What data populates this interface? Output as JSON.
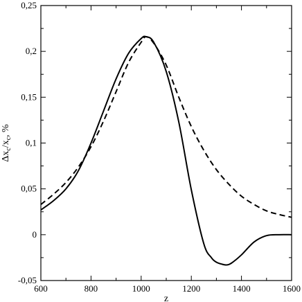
{
  "chart_data": {
    "type": "line",
    "xlabel": "z",
    "ylabel_parts": [
      "Δx",
      "c",
      "/x",
      "c",
      ", %"
    ],
    "xlim": [
      600,
      1600
    ],
    "ylim": [
      -0.05,
      0.25
    ],
    "xticks": [
      600,
      800,
      1000,
      1200,
      1400,
      1600
    ],
    "xtick_labels": [
      "600",
      "800",
      "1000",
      "1200",
      "1400",
      "1600"
    ],
    "yticks": [
      -0.05,
      0,
      0.05,
      0.1,
      0.15,
      0.2,
      0.25
    ],
    "ytick_labels": [
      "-0,05",
      "0",
      "0,05",
      "0,1",
      "0,15",
      "0,2",
      "0,25"
    ],
    "grid": false,
    "series": [
      {
        "style": "solid",
        "x": [
          600,
          650,
          700,
          750,
          800,
          850,
          900,
          950,
          1000,
          1020,
          1050,
          1100,
          1150,
          1200,
          1250,
          1280,
          1300,
          1320,
          1340,
          1360,
          1400,
          1450,
          1500,
          1550,
          1600
        ],
        "y": [
          0.027,
          0.037,
          0.05,
          0.07,
          0.1,
          0.135,
          0.17,
          0.198,
          0.214,
          0.216,
          0.21,
          0.178,
          0.123,
          0.049,
          -0.01,
          -0.025,
          -0.03,
          -0.032,
          -0.033,
          -0.031,
          -0.022,
          -0.008,
          -0.001,
          0.0,
          0.0
        ]
      },
      {
        "style": "dashed",
        "x": [
          600,
          650,
          700,
          750,
          800,
          850,
          900,
          950,
          1000,
          1020,
          1050,
          1100,
          1150,
          1200,
          1250,
          1300,
          1350,
          1400,
          1450,
          1500,
          1550,
          1600
        ],
        "y": [
          0.033,
          0.044,
          0.057,
          0.074,
          0.096,
          0.124,
          0.156,
          0.188,
          0.21,
          0.216,
          0.209,
          0.185,
          0.15,
          0.118,
          0.092,
          0.071,
          0.055,
          0.042,
          0.033,
          0.026,
          0.022,
          0.019
        ]
      }
    ]
  }
}
